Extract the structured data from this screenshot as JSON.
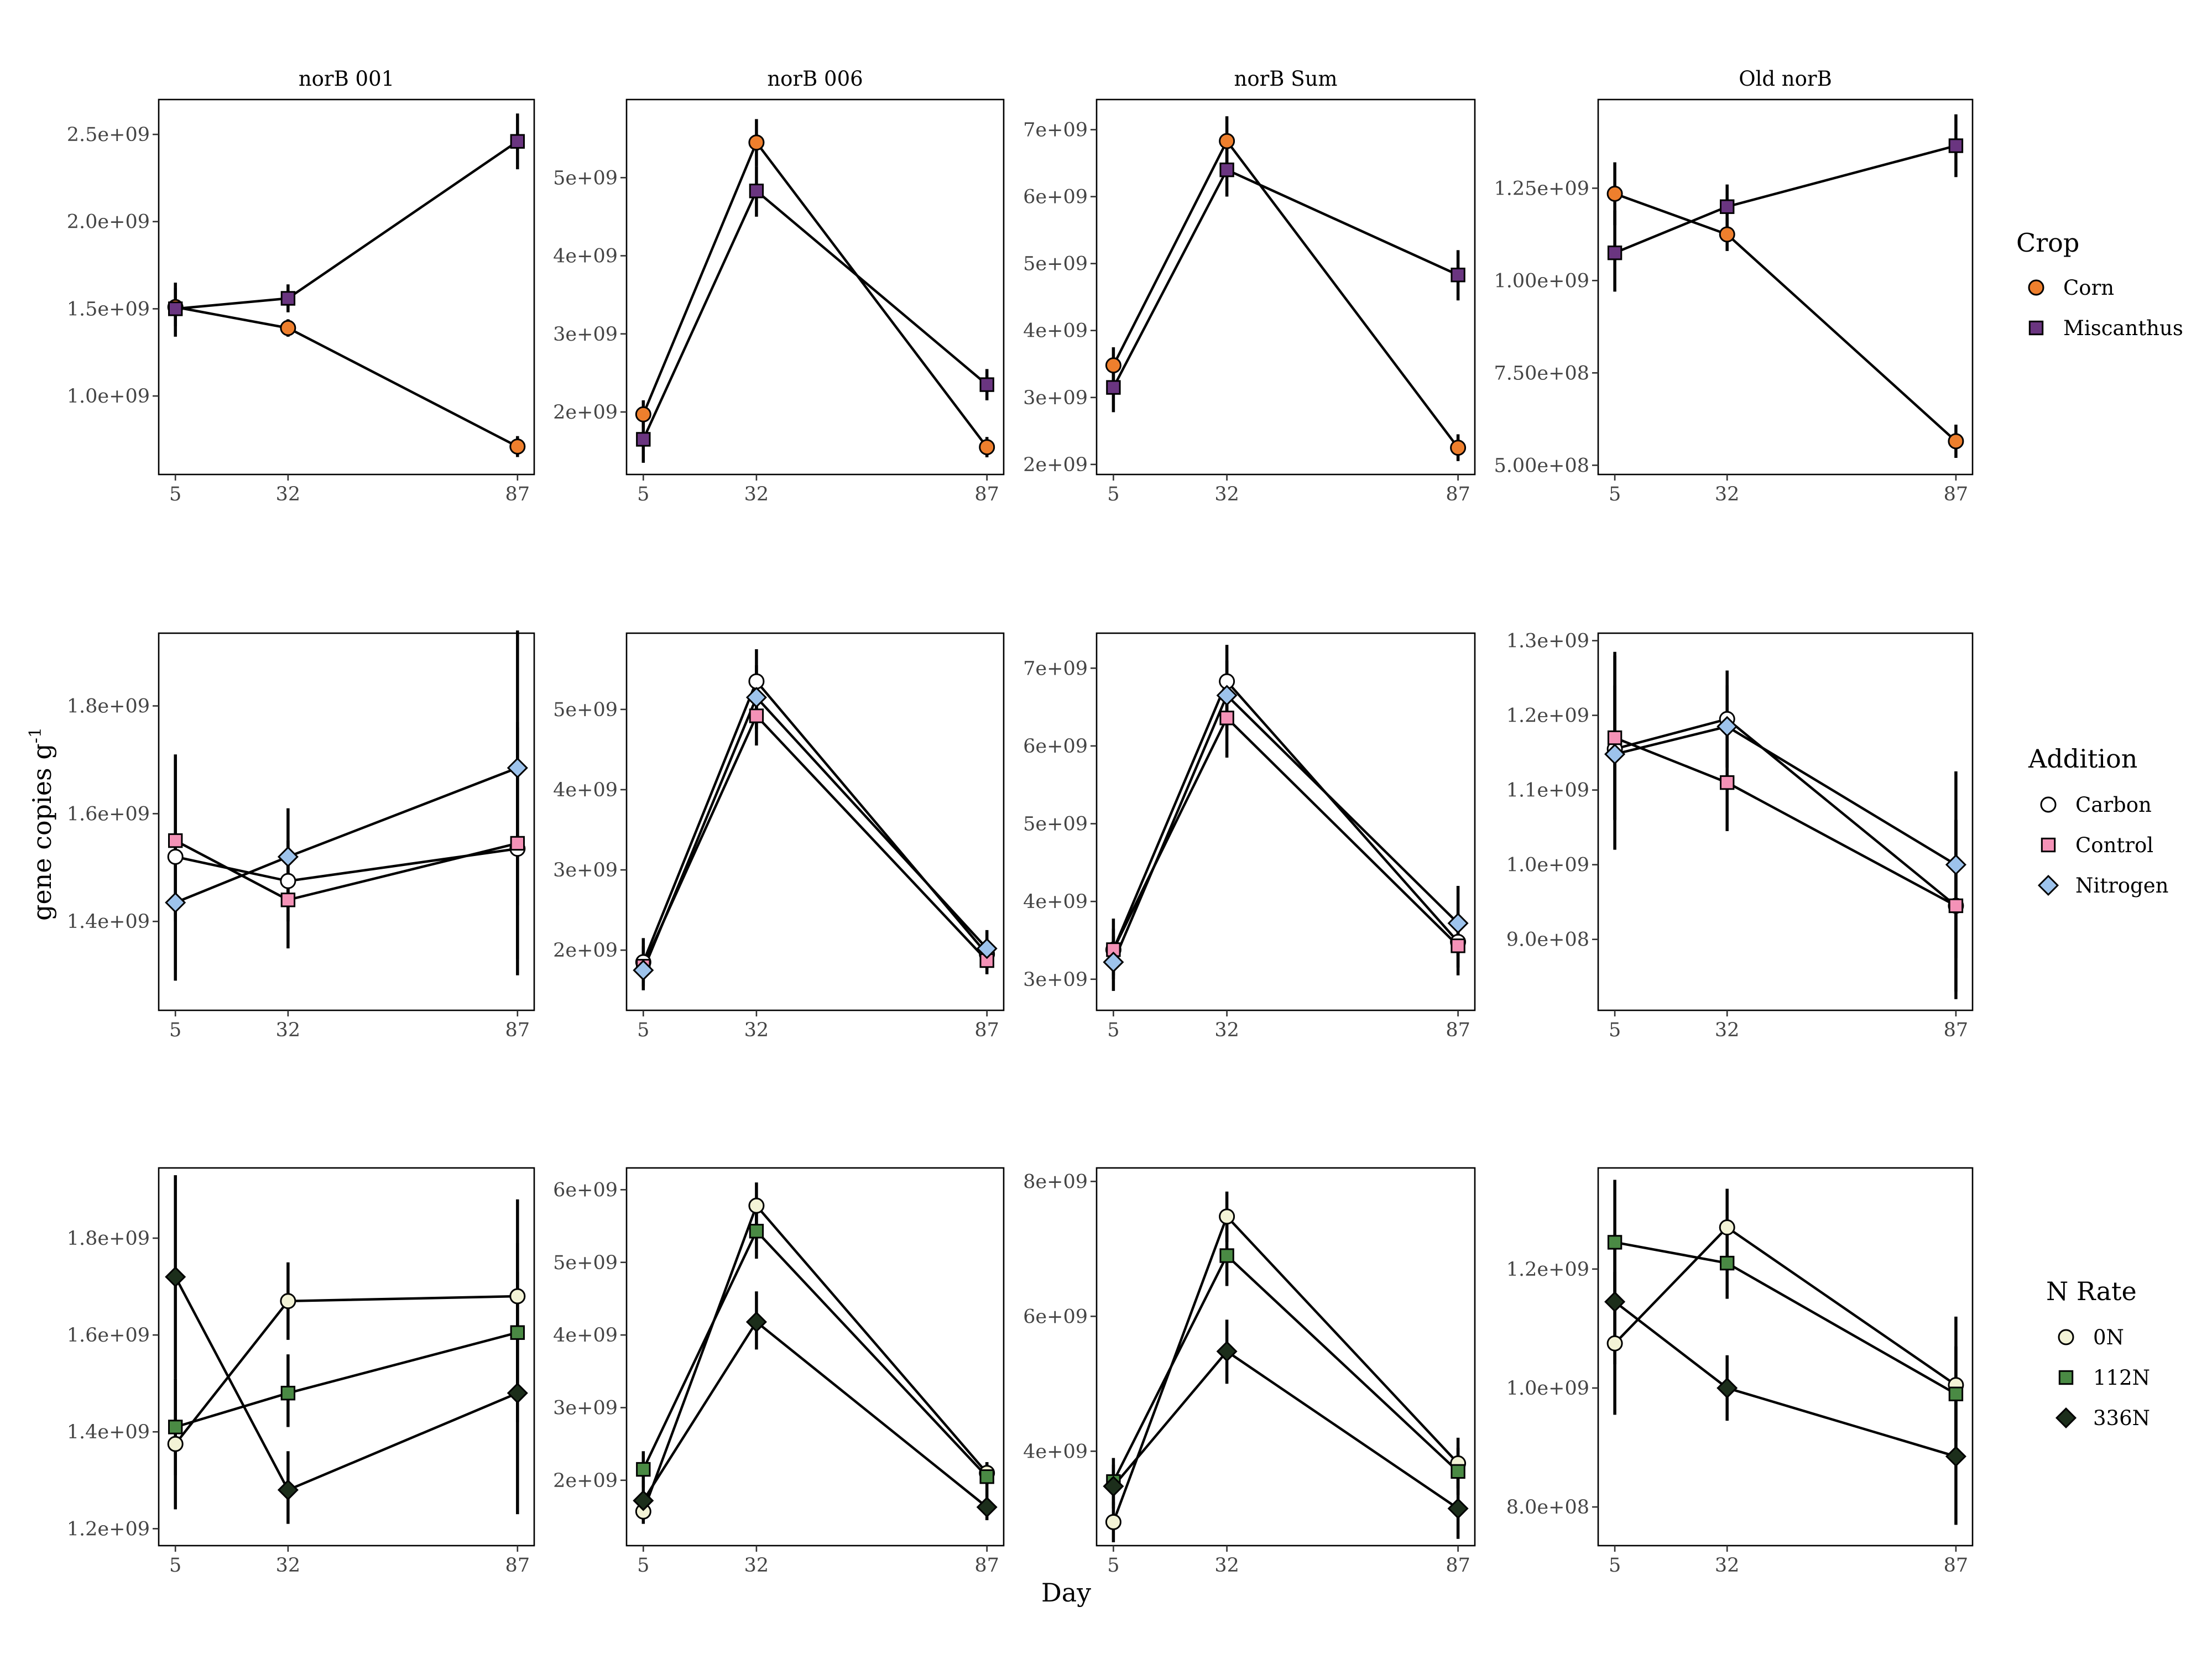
{
  "chart_data": {
    "type": "line",
    "xlabel": "Day",
    "ylabel": "gene copies g",
    "ylabel_superscript": "-1",
    "columns": [
      "norB 001",
      "norB 006",
      "norB Sum",
      "Old norB"
    ],
    "x_ticks": [
      5,
      32,
      87
    ],
    "x_range": [
      1.0,
      91.0
    ],
    "rows": [
      {
        "legend_title": "Crop",
        "series": [
          {
            "name": "Corn",
            "color": "#EE7F2D",
            "marker": "circle"
          },
          {
            "name": "Miscanthus",
            "color": "#6A3580",
            "marker": "square"
          }
        ]
      },
      {
        "legend_title": "Addition",
        "series": [
          {
            "name": "Carbon",
            "color": "#FFFFFF",
            "marker": "circle"
          },
          {
            "name": "Control",
            "color": "#F492B7",
            "marker": "square"
          },
          {
            "name": "Nitrogen",
            "color": "#9DC3EC",
            "marker": "diamond"
          }
        ]
      },
      {
        "legend_title": "N Rate",
        "series": [
          {
            "name": "0N",
            "color": "#F3F3D6",
            "marker": "circle"
          },
          {
            "name": "112N",
            "color": "#4A8A44",
            "marker": "square"
          },
          {
            "name": "336N",
            "color": "#1C2E1B",
            "marker": "diamond"
          }
        ]
      }
    ],
    "panels": [
      {
        "row": 0,
        "col": 0,
        "ylim": [
          550000000.0,
          2700000000.0
        ],
        "yticks": [
          1000000000.0,
          1500000000.0,
          2000000000.0,
          2500000000.0
        ],
        "ytick_labels": [
          "1.0e+09",
          "1.5e+09",
          "2.0e+09",
          "2.5e+09"
        ],
        "series": [
          {
            "values": [
              1510000000.0,
              1390000000.0,
              710000000.0
            ],
            "lo": [
              1400000000.0,
              1340000000.0,
              650000000.0
            ],
            "hi": [
              1620000000.0,
              1440000000.0,
              770000000.0
            ]
          },
          {
            "values": [
              1500000000.0,
              1560000000.0,
              2460000000.0
            ],
            "lo": [
              1340000000.0,
              1480000000.0,
              2300000000.0
            ],
            "hi": [
              1650000000.0,
              1640000000.0,
              2620000000.0
            ]
          }
        ]
      },
      {
        "row": 0,
        "col": 1,
        "ylim": [
          1200000000.0,
          6000000000.0
        ],
        "yticks": [
          2000000000.0,
          3000000000.0,
          4000000000.0,
          5000000000.0
        ],
        "ytick_labels": [
          "2e+09",
          "3e+09",
          "4e+09",
          "5e+09"
        ],
        "series": [
          {
            "values": [
              1970000000.0,
              5450000000.0,
              1550000000.0
            ],
            "lo": [
              1800000000.0,
              5150000000.0,
              1420000000.0
            ],
            "hi": [
              2150000000.0,
              5750000000.0,
              1680000000.0
            ]
          },
          {
            "values": [
              1650000000.0,
              4830000000.0,
              2350000000.0
            ],
            "lo": [
              1350000000.0,
              4500000000.0,
              2150000000.0
            ],
            "hi": [
              1950000000.0,
              5150000000.0,
              2550000000.0
            ]
          }
        ]
      },
      {
        "row": 0,
        "col": 2,
        "ylim": [
          1850000000.0,
          7450000000.0
        ],
        "yticks": [
          2000000000.0,
          3000000000.0,
          4000000000.0,
          5000000000.0,
          6000000000.0,
          7000000000.0
        ],
        "ytick_labels": [
          "2e+09",
          "3e+09",
          "4e+09",
          "5e+09",
          "6e+09",
          "7e+09"
        ],
        "series": [
          {
            "values": [
              3480000000.0,
              6830000000.0,
              2250000000.0
            ],
            "lo": [
              3250000000.0,
              6450000000.0,
              2050000000.0
            ],
            "hi": [
              3750000000.0,
              7200000000.0,
              2450000000.0
            ]
          },
          {
            "values": [
              3150000000.0,
              6400000000.0,
              4830000000.0
            ],
            "lo": [
              2780000000.0,
              6000000000.0,
              4450000000.0
            ],
            "hi": [
              3500000000.0,
              6800000000.0,
              5200000000.0
            ]
          }
        ]
      },
      {
        "row": 0,
        "col": 3,
        "ylim": [
          475000000.0,
          1490000000.0
        ],
        "yticks": [
          500000000.0,
          750000000.0,
          1000000000.0,
          1250000000.0
        ],
        "ytick_labels": [
          "5.00e+08",
          "7.50e+08",
          "1.00e+09",
          "1.25e+09"
        ],
        "series": [
          {
            "values": [
              1235000000.0,
              1125000000.0,
              565000000.0
            ],
            "lo": [
              1150000000.0,
              1080000000.0,
              520000000.0
            ],
            "hi": [
              1320000000.0,
              1170000000.0,
              610000000.0
            ]
          },
          {
            "values": [
              1075000000.0,
              1200000000.0,
              1365000000.0
            ],
            "lo": [
              970000000.0,
              1140000000.0,
              1280000000.0
            ],
            "hi": [
              1190000000.0,
              1260000000.0,
              1450000000.0
            ]
          }
        ]
      },
      {
        "row": 1,
        "col": 0,
        "ylim": [
          1235000000.0,
          1935000000.0
        ],
        "yticks": [
          1400000000.0,
          1600000000.0,
          1800000000.0
        ],
        "ytick_labels": [
          "1.4e+09",
          "1.6e+09",
          "1.8e+09"
        ],
        "series": [
          {
            "values": [
              1520000000.0,
              1475000000.0,
              1535000000.0
            ],
            "lo": [
              1290000000.0,
              1400000000.0,
              1300000000.0
            ],
            "hi": [
              1710000000.0,
              1550000000.0,
              1770000000.0
            ]
          },
          {
            "values": [
              1550000000.0,
              1440000000.0,
              1545000000.0
            ],
            "lo": [
              1400000000.0,
              1350000000.0,
              1330000000.0
            ],
            "hi": [
              1700000000.0,
              1530000000.0,
              1760000000.0
            ]
          },
          {
            "values": [
              1435000000.0,
              1520000000.0,
              1685000000.0
            ],
            "lo": [
              1310000000.0,
              1430000000.0,
              1430000000.0
            ],
            "hi": [
              1560000000.0,
              1610000000.0,
              1940000000.0
            ]
          }
        ]
      },
      {
        "row": 1,
        "col": 1,
        "ylim": [
          1250000000.0,
          5950000000.0
        ],
        "yticks": [
          2000000000.0,
          3000000000.0,
          4000000000.0,
          5000000000.0
        ],
        "ytick_labels": [
          "2e+09",
          "3e+09",
          "4e+09",
          "5e+09"
        ],
        "series": [
          {
            "values": [
              1850000000.0,
              5350000000.0,
              1950000000.0
            ],
            "lo": [
              1600000000.0,
              4950000000.0,
              1750000000.0
            ],
            "hi": [
              2150000000.0,
              5750000000.0,
              2150000000.0
            ]
          },
          {
            "values": [
              1800000000.0,
              4920000000.0,
              1870000000.0
            ],
            "lo": [
              1550000000.0,
              4550000000.0,
              1700000000.0
            ],
            "hi": [
              2050000000.0,
              5300000000.0,
              2050000000.0
            ]
          },
          {
            "values": [
              1750000000.0,
              5150000000.0,
              2020000000.0
            ],
            "lo": [
              1500000000.0,
              4750000000.0,
              1800000000.0
            ],
            "hi": [
              2000000000.0,
              5550000000.0,
              2250000000.0
            ]
          }
        ]
      },
      {
        "row": 1,
        "col": 2,
        "ylim": [
          2600000000.0,
          7450000000.0
        ],
        "yticks": [
          3000000000.0,
          4000000000.0,
          5000000000.0,
          6000000000.0,
          7000000000.0
        ],
        "ytick_labels": [
          "3e+09",
          "4e+09",
          "5e+09",
          "6e+09",
          "7e+09"
        ],
        "series": [
          {
            "values": [
              3380000000.0,
              6830000000.0,
              3480000000.0
            ],
            "lo": [
              3000000000.0,
              6350000000.0,
              3150000000.0
            ],
            "hi": [
              3780000000.0,
              7300000000.0,
              3850000000.0
            ]
          },
          {
            "values": [
              3380000000.0,
              6360000000.0,
              3430000000.0
            ],
            "lo": [
              3050000000.0,
              5850000000.0,
              3050000000.0
            ],
            "hi": [
              3650000000.0,
              6850000000.0,
              3800000000.0
            ]
          },
          {
            "values": [
              3220000000.0,
              6650000000.0,
              3720000000.0
            ],
            "lo": [
              2850000000.0,
              6200000000.0,
              3300000000.0
            ],
            "hi": [
              3550000000.0,
              7100000000.0,
              4200000000.0
            ]
          }
        ]
      },
      {
        "row": 1,
        "col": 3,
        "ylim": [
          805000000.0,
          1310000000.0
        ],
        "yticks": [
          900000000.0,
          1000000000.0,
          1100000000.0,
          1200000000.0,
          1300000000.0
        ],
        "ytick_labels": [
          "9.0e+08",
          "1.0e+09",
          "1.1e+09",
          "1.2e+09",
          "1.3e+09"
        ],
        "series": [
          {
            "values": [
              1155000000.0,
              1195000000.0,
              945000000.0
            ],
            "lo": [
              1020000000.0,
              1130000000.0,
              820000000.0
            ],
            "hi": [
              1285000000.0,
              1260000000.0,
              1060000000.0
            ]
          },
          {
            "values": [
              1170000000.0,
              1110000000.0,
              945000000.0
            ],
            "lo": [
              1060000000.0,
              1045000000.0,
              830000000.0
            ],
            "hi": [
              1280000000.0,
              1175000000.0,
              1060000000.0
            ]
          },
          {
            "values": [
              1148000000.0,
              1185000000.0,
              1000000000.0
            ],
            "lo": [
              1060000000.0,
              1130000000.0,
              875000000.0
            ],
            "hi": [
              1240000000.0,
              1240000000.0,
              1125000000.0
            ]
          }
        ]
      },
      {
        "row": 2,
        "col": 0,
        "ylim": [
          1165000000.0,
          1945000000.0
        ],
        "yticks": [
          1200000000.0,
          1400000000.0,
          1600000000.0,
          1800000000.0
        ],
        "ytick_labels": [
          "1.2e+09",
          "1.4e+09",
          "1.6e+09",
          "1.8e+09"
        ],
        "series": [
          {
            "values": [
              1375000000.0,
              1670000000.0,
              1680000000.0
            ],
            "lo": [
              1240000000.0,
              1590000000.0,
              1480000000.0
            ],
            "hi": [
              1510000000.0,
              1750000000.0,
              1880000000.0
            ]
          },
          {
            "values": [
              1410000000.0,
              1480000000.0,
              1605000000.0
            ],
            "lo": [
              1310000000.0,
              1410000000.0,
              1420000000.0
            ],
            "hi": [
              1510000000.0,
              1560000000.0,
              1790000000.0
            ]
          },
          {
            "values": [
              1720000000.0,
              1280000000.0,
              1480000000.0
            ],
            "lo": [
              1510000000.0,
              1210000000.0,
              1230000000.0
            ],
            "hi": [
              1930000000.0,
              1360000000.0,
              1730000000.0
            ]
          }
        ]
      },
      {
        "row": 2,
        "col": 1,
        "ylim": [
          1100000000.0,
          6300000000.0
        ],
        "yticks": [
          2000000000.0,
          3000000000.0,
          4000000000.0,
          5000000000.0,
          6000000000.0
        ],
        "ytick_labels": [
          "2e+09",
          "3e+09",
          "4e+09",
          "5e+09",
          "6e+09"
        ],
        "series": [
          {
            "values": [
              1570000000.0,
              5780000000.0,
              2100000000.0
            ],
            "lo": [
              1400000000.0,
              5450000000.0,
              1950000000.0
            ],
            "hi": [
              1750000000.0,
              6100000000.0,
              2250000000.0
            ]
          },
          {
            "values": [
              2150000000.0,
              5430000000.0,
              2050000000.0
            ],
            "lo": [
              1900000000.0,
              5050000000.0,
              1850000000.0
            ],
            "hi": [
              2400000000.0,
              5800000000.0,
              2250000000.0
            ]
          },
          {
            "values": [
              1720000000.0,
              4180000000.0,
              1630000000.0
            ],
            "lo": [
              1450000000.0,
              3800000000.0,
              1450000000.0
            ],
            "hi": [
              2000000000.0,
              4600000000.0,
              1850000000.0
            ]
          }
        ]
      },
      {
        "row": 2,
        "col": 2,
        "ylim": [
          2600000000.0,
          8200000000.0
        ],
        "yticks": [
          4000000000.0,
          6000000000.0,
          8000000000.0
        ],
        "ytick_labels": [
          "4e+09",
          "6e+09",
          "8e+09"
        ],
        "series": [
          {
            "values": [
              2950000000.0,
              7480000000.0,
              3820000000.0
            ],
            "lo": [
              2650000000.0,
              7100000000.0,
              3450000000.0
            ],
            "hi": [
              3250000000.0,
              7850000000.0,
              4200000000.0
            ]
          },
          {
            "values": [
              3550000000.0,
              6900000000.0,
              3700000000.0
            ],
            "lo": [
              3200000000.0,
              6450000000.0,
              3350000000.0
            ],
            "hi": [
              3900000000.0,
              7400000000.0,
              4050000000.0
            ]
          },
          {
            "values": [
              3480000000.0,
              5480000000.0,
              3150000000.0
            ],
            "lo": [
              3150000000.0,
              5000000000.0,
              2700000000.0
            ],
            "hi": [
              3800000000.0,
              5950000000.0,
              3600000000.0
            ]
          }
        ]
      },
      {
        "row": 2,
        "col": 3,
        "ylim": [
          735000000.0,
          1370000000.0
        ],
        "yticks": [
          800000000.0,
          1000000000.0,
          1200000000.0
        ],
        "ytick_labels": [
          "8.0e+08",
          "1.0e+09",
          "1.2e+09"
        ],
        "series": [
          {
            "values": [
              1075000000.0,
              1270000000.0,
              1005000000.0
            ],
            "lo": [
              955000000.0,
              1205000000.0,
              890000000.0
            ],
            "hi": [
              1195000000.0,
              1335000000.0,
              1120000000.0
            ]
          },
          {
            "values": [
              1245000000.0,
              1210000000.0,
              990000000.0
            ],
            "lo": [
              1140000000.0,
              1150000000.0,
              910000000.0
            ],
            "hi": [
              1350000000.0,
              1270000000.0,
              1070000000.0
            ]
          },
          {
            "values": [
              1145000000.0,
              1000000000.0,
              885000000.0
            ],
            "lo": [
              1040000000.0,
              945000000.0,
              770000000.0
            ],
            "hi": [
              1250000000.0,
              1055000000.0,
              1000000000.0
            ]
          }
        ]
      }
    ]
  }
}
